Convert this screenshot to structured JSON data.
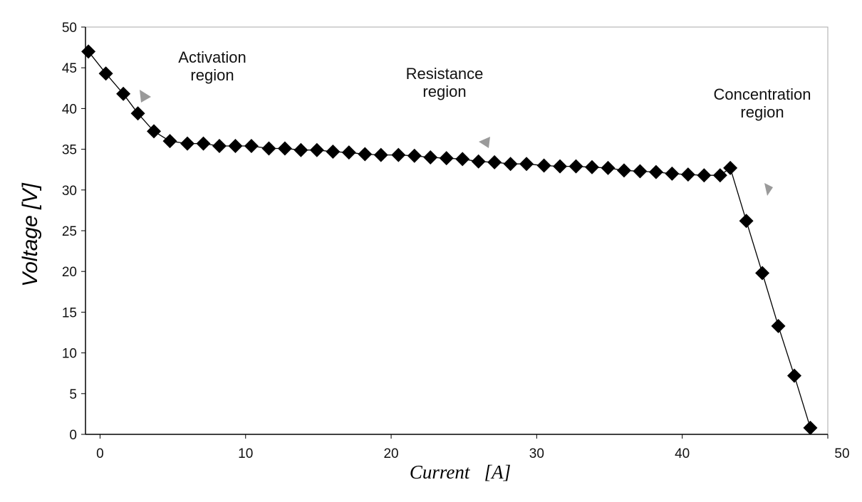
{
  "chart_data": {
    "type": "scatter",
    "title": "",
    "xlabel": "Current   [A]",
    "ylabel": "Voltage [V]",
    "xlim": [
      -1,
      50
    ],
    "ylim": [
      0,
      50
    ],
    "x_ticks": [
      "0",
      "10",
      "20",
      "30",
      "40",
      "50"
    ],
    "y_ticks": [
      "0",
      "5",
      "10",
      "15",
      "20",
      "25",
      "30",
      "35",
      "40",
      "45",
      "50"
    ],
    "grid": false,
    "legend": "none",
    "marker_color": "#000000",
    "line_color": "#000000",
    "arrow_color": "#9a9a9a",
    "annotations": [
      {
        "lines": [
          "Activation",
          "region"
        ],
        "arrow_direction": "right"
      },
      {
        "lines": [
          "Resistance",
          "region"
        ],
        "arrow_direction": "left"
      },
      {
        "lines": [
          "Concentration",
          "region"
        ],
        "arrow_direction": "down"
      }
    ],
    "series": [
      {
        "x": [
          -0.8,
          0.4,
          1.6,
          2.6,
          3.7,
          4.8,
          6.0,
          7.1,
          8.2,
          9.3,
          10.4,
          11.6,
          12.7,
          13.8,
          14.9,
          16.0,
          17.1,
          18.2,
          19.3,
          20.5,
          21.6,
          22.7,
          23.8,
          24.9,
          26.0,
          27.1,
          28.2,
          29.3,
          30.5,
          31.6,
          32.7,
          33.8,
          34.9,
          36.0,
          37.1,
          38.2,
          39.3,
          40.4,
          41.5,
          42.6,
          43.3,
          44.4,
          45.5,
          46.6,
          47.7,
          48.8
        ],
        "y": [
          47.0,
          44.3,
          41.8,
          39.4,
          37.2,
          36.0,
          35.7,
          35.7,
          35.4,
          35.4,
          35.4,
          35.1,
          35.1,
          34.9,
          34.9,
          34.7,
          34.6,
          34.4,
          34.3,
          34.3,
          34.2,
          34.0,
          33.9,
          33.8,
          33.5,
          33.4,
          33.2,
          33.2,
          33.0,
          32.9,
          32.9,
          32.8,
          32.7,
          32.4,
          32.3,
          32.2,
          32.0,
          31.9,
          31.8,
          31.8,
          32.7,
          26.2,
          19.8,
          13.3,
          7.2,
          0.8
        ]
      }
    ]
  }
}
